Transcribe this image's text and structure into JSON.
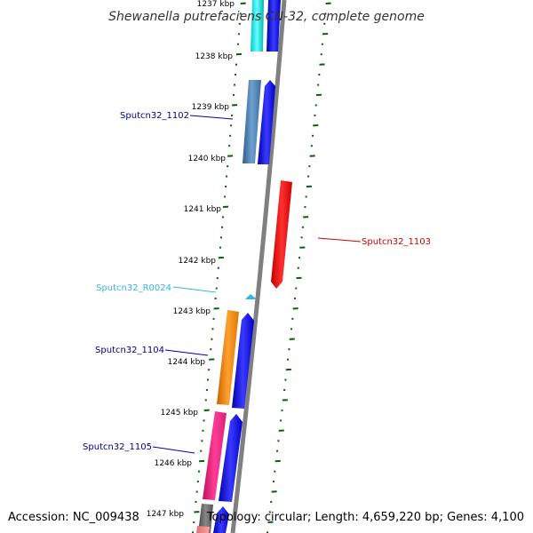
{
  "title": "Shewanella putrefaciens CN-32, complete genome",
  "accession": "Accession: NC_009438",
  "topology": "Topology: circular; Length: 4,659,220 bp; Genes: 4,100",
  "ruler_labels": [
    "1237 kbp",
    "1238 kbp",
    "1239 kbp",
    "1240 kbp",
    "1241 kbp",
    "1242 kbp",
    "1243 kbp",
    "1244 kbp",
    "1245 kbp",
    "1246 kbp",
    "1247 kbp"
  ],
  "gene_labels": [
    {
      "text": "Sputcn32_1102",
      "color": "#00008b"
    },
    {
      "text": "Sputcn32_1103",
      "color": "#cc0000"
    },
    {
      "text": "Sputcn32_R0024",
      "color": "#33b5e5"
    },
    {
      "text": "Sputcn32_1104",
      "color": "#00008b"
    },
    {
      "text": "Sputcn32_1105",
      "color": "#00008b"
    }
  ],
  "colors": {
    "backbone": "#808080",
    "ruler_ticks": "#006400",
    "cds_forward": "#0000ee",
    "cds_reverse": "#ee0000",
    "rna": "#33b5e5"
  }
}
